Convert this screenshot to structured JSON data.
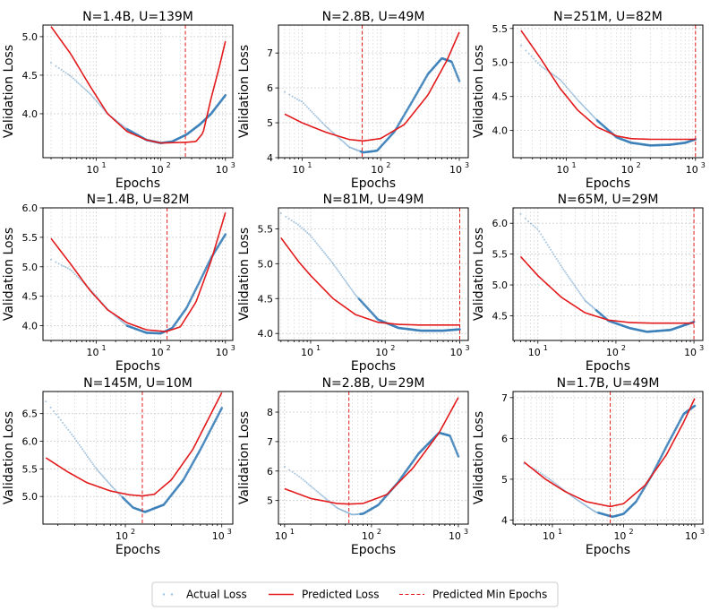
{
  "legend": {
    "actual": "Actual Loss",
    "predicted": "Predicted Loss",
    "min_epochs": "Predicted Min Epochs"
  },
  "colors": {
    "actual": "#3a7fb8",
    "predicted": "#e31a1c",
    "min_line": "#e31a1c",
    "grid": "#cfcfcf",
    "axis": "#000000"
  },
  "chart_data": [
    {
      "type": "scatter",
      "title": "N=1.4B, U=139M",
      "xlabel": "Epochs",
      "ylabel": "Validation Loss",
      "xscale": "log",
      "grid": true,
      "xlim": [
        1.5,
        1300
      ],
      "ylim": [
        3.43,
        5.15
      ],
      "xticks": [
        {
          "base": "10",
          "exp": "1",
          "v": 10
        },
        {
          "base": "10",
          "exp": "2",
          "v": 100
        },
        {
          "base": "10",
          "exp": "3",
          "v": 1000
        }
      ],
      "yticks": [
        "4.0",
        "4.5",
        "5.0"
      ],
      "actual": {
        "x_start": 2,
        "x_end": 1000,
        "points": [
          [
            2,
            4.66
          ],
          [
            4,
            4.49
          ],
          [
            8,
            4.26
          ],
          [
            15,
            4.0
          ],
          [
            30,
            3.8
          ],
          [
            60,
            3.66
          ],
          [
            100,
            3.62
          ],
          [
            150,
            3.64
          ],
          [
            250,
            3.73
          ],
          [
            400,
            3.86
          ],
          [
            600,
            4.0
          ],
          [
            1000,
            4.24
          ]
        ]
      },
      "predicted": {
        "points": [
          [
            2,
            5.13
          ],
          [
            4,
            4.78
          ],
          [
            8,
            4.36
          ],
          [
            15,
            4.0
          ],
          [
            30,
            3.77
          ],
          [
            60,
            3.66
          ],
          [
            100,
            3.62
          ],
          [
            250,
            3.63
          ],
          [
            350,
            3.64
          ],
          [
            450,
            3.75
          ],
          [
            600,
            4.2
          ],
          [
            800,
            4.6
          ],
          [
            1000,
            4.94
          ]
        ]
      },
      "min_epoch": 240
    },
    {
      "type": "scatter",
      "title": "N=2.8B, U=49M",
      "xlabel": "Epochs",
      "ylabel": "Validation Loss",
      "xscale": "log",
      "grid": true,
      "xlim": [
        5,
        1300
      ],
      "ylim": [
        4.0,
        7.8
      ],
      "xticks": [
        {
          "base": "10",
          "exp": "1",
          "v": 10
        },
        {
          "base": "10",
          "exp": "2",
          "v": 100
        },
        {
          "base": "10",
          "exp": "3",
          "v": 1000
        }
      ],
      "yticks": [
        "4",
        "5",
        "6",
        "7"
      ],
      "actual": {
        "x_start": 6,
        "x_end": 1000,
        "points": [
          [
            6,
            5.88
          ],
          [
            10,
            5.6
          ],
          [
            20,
            4.9
          ],
          [
            40,
            4.3
          ],
          [
            60,
            4.15
          ],
          [
            90,
            4.2
          ],
          [
            150,
            4.75
          ],
          [
            250,
            5.6
          ],
          [
            400,
            6.4
          ],
          [
            600,
            6.85
          ],
          [
            800,
            6.75
          ],
          [
            1000,
            6.2
          ]
        ]
      },
      "predicted": {
        "points": [
          [
            6,
            5.25
          ],
          [
            10,
            5.0
          ],
          [
            20,
            4.73
          ],
          [
            40,
            4.52
          ],
          [
            60,
            4.48
          ],
          [
            100,
            4.55
          ],
          [
            200,
            4.95
          ],
          [
            400,
            5.8
          ],
          [
            700,
            6.8
          ],
          [
            1000,
            7.6
          ]
        ]
      },
      "min_epoch": 58
    },
    {
      "type": "scatter",
      "title": "N=251M, U=82M",
      "xlabel": "Epochs",
      "ylabel": "Validation Loss",
      "xscale": "log",
      "grid": true,
      "xlim": [
        1.5,
        1300
      ],
      "ylim": [
        3.6,
        5.55
      ],
      "xticks": [
        {
          "base": "10",
          "exp": "1",
          "v": 10
        },
        {
          "base": "10",
          "exp": "2",
          "v": 100
        },
        {
          "base": "10",
          "exp": "3",
          "v": 1000
        }
      ],
      "yticks": [
        "4.0",
        "4.5",
        "5.0",
        "5.5"
      ],
      "actual": {
        "x_start": 2,
        "x_end": 1000,
        "points": [
          [
            2,
            5.25
          ],
          [
            4,
            4.95
          ],
          [
            8,
            4.75
          ],
          [
            15,
            4.45
          ],
          [
            30,
            4.15
          ],
          [
            60,
            3.9
          ],
          [
            100,
            3.82
          ],
          [
            200,
            3.78
          ],
          [
            400,
            3.79
          ],
          [
            700,
            3.82
          ],
          [
            1000,
            3.87
          ]
        ]
      },
      "predicted": {
        "points": [
          [
            2,
            5.47
          ],
          [
            4,
            5.06
          ],
          [
            8,
            4.62
          ],
          [
            15,
            4.3
          ],
          [
            30,
            4.05
          ],
          [
            60,
            3.92
          ],
          [
            100,
            3.88
          ],
          [
            200,
            3.87
          ],
          [
            1000,
            3.87
          ]
        ]
      },
      "min_epoch": 1000
    },
    {
      "type": "scatter",
      "title": "N=1.4B, U=82M",
      "xlabel": "Epochs",
      "ylabel": "Validation Loss",
      "xscale": "log",
      "grid": true,
      "xlim": [
        1.5,
        1300
      ],
      "ylim": [
        3.75,
        6.0
      ],
      "xticks": [
        {
          "base": "10",
          "exp": "1",
          "v": 10
        },
        {
          "base": "10",
          "exp": "2",
          "v": 100
        },
        {
          "base": "10",
          "exp": "3",
          "v": 1000
        }
      ],
      "yticks": [
        "4.0",
        "4.5",
        "5.0",
        "5.5",
        "6.0"
      ],
      "actual": {
        "x_start": 2,
        "x_end": 1000,
        "points": [
          [
            2,
            5.12
          ],
          [
            4,
            4.95
          ],
          [
            8,
            4.62
          ],
          [
            15,
            4.28
          ],
          [
            30,
            4.0
          ],
          [
            60,
            3.88
          ],
          [
            100,
            3.87
          ],
          [
            150,
            3.96
          ],
          [
            250,
            4.3
          ],
          [
            400,
            4.75
          ],
          [
            600,
            5.15
          ],
          [
            1000,
            5.55
          ]
        ]
      },
      "predicted": {
        "points": [
          [
            2,
            5.48
          ],
          [
            4,
            5.05
          ],
          [
            8,
            4.6
          ],
          [
            15,
            4.27
          ],
          [
            30,
            4.05
          ],
          [
            60,
            3.93
          ],
          [
            120,
            3.9
          ],
          [
            200,
            3.98
          ],
          [
            350,
            4.4
          ],
          [
            600,
            5.1
          ],
          [
            1000,
            5.92
          ]
        ]
      },
      "min_epoch": 125
    },
    {
      "type": "scatter",
      "title": "N=81M, U=49M",
      "xlabel": "Epochs",
      "ylabel": "Validation Loss",
      "xscale": "log",
      "grid": true,
      "xlim": [
        3.7,
        1300
      ],
      "ylim": [
        3.9,
        5.8
      ],
      "xticks": [
        {
          "base": "10",
          "exp": "1",
          "v": 10
        },
        {
          "base": "10",
          "exp": "2",
          "v": 100
        },
        {
          "base": "10",
          "exp": "3",
          "v": 1000
        }
      ],
      "yticks": [
        "4.0",
        "4.5",
        "5.0",
        "5.5"
      ],
      "actual": {
        "x_start": 4,
        "x_end": 1000,
        "points": [
          [
            4,
            5.72
          ],
          [
            7,
            5.55
          ],
          [
            10,
            5.4
          ],
          [
            20,
            5.0
          ],
          [
            40,
            4.55
          ],
          [
            80,
            4.2
          ],
          [
            150,
            4.08
          ],
          [
            300,
            4.04
          ],
          [
            600,
            4.04
          ],
          [
            1000,
            4.06
          ]
        ]
      },
      "predicted": {
        "points": [
          [
            4,
            5.37
          ],
          [
            7,
            5.02
          ],
          [
            10,
            4.83
          ],
          [
            20,
            4.5
          ],
          [
            40,
            4.27
          ],
          [
            80,
            4.16
          ],
          [
            150,
            4.13
          ],
          [
            300,
            4.12
          ],
          [
            1000,
            4.12
          ]
        ]
      },
      "min_epoch": 1000
    },
    {
      "type": "scatter",
      "title": "N=65M, U=29M",
      "xlabel": "Epochs",
      "ylabel": "Validation Loss",
      "xscale": "log",
      "grid": true,
      "xlim": [
        4.8,
        1300
      ],
      "ylim": [
        4.1,
        6.25
      ],
      "xticks": [
        {
          "base": "10",
          "exp": "1",
          "v": 10
        },
        {
          "base": "10",
          "exp": "2",
          "v": 100
        },
        {
          "base": "10",
          "exp": "3",
          "v": 1000
        }
      ],
      "yticks": [
        "4.5",
        "5.0",
        "5.5",
        "6.0"
      ],
      "actual": {
        "x_start": 6,
        "x_end": 1000,
        "points": [
          [
            6,
            6.15
          ],
          [
            8,
            6.0
          ],
          [
            10,
            5.9
          ],
          [
            20,
            5.3
          ],
          [
            40,
            4.75
          ],
          [
            80,
            4.42
          ],
          [
            150,
            4.3
          ],
          [
            250,
            4.24
          ],
          [
            500,
            4.27
          ],
          [
            1000,
            4.4
          ]
        ]
      },
      "predicted": {
        "points": [
          [
            6,
            5.46
          ],
          [
            10,
            5.15
          ],
          [
            20,
            4.8
          ],
          [
            40,
            4.55
          ],
          [
            80,
            4.43
          ],
          [
            150,
            4.39
          ],
          [
            300,
            4.38
          ],
          [
            1000,
            4.38
          ]
        ]
      },
      "min_epoch": 1000
    },
    {
      "type": "scatter",
      "title": "N=145M, U=10M",
      "xlabel": "Epochs",
      "ylabel": "Validation Loss",
      "xscale": "log",
      "grid": true,
      "xlim": [
        14,
        1300
      ],
      "ylim": [
        4.5,
        6.9
      ],
      "xticks": [
        {
          "base": "10",
          "exp": "2",
          "v": 100
        },
        {
          "base": "10",
          "exp": "3",
          "v": 1000
        }
      ],
      "yticks": [
        "5.0",
        "5.5",
        "6.0",
        "6.5"
      ],
      "actual": {
        "x_start": 15,
        "x_end": 1000,
        "points": [
          [
            15,
            6.72
          ],
          [
            20,
            6.45
          ],
          [
            30,
            6.05
          ],
          [
            50,
            5.5
          ],
          [
            80,
            5.1
          ],
          [
            120,
            4.8
          ],
          [
            160,
            4.72
          ],
          [
            250,
            4.85
          ],
          [
            400,
            5.3
          ],
          [
            600,
            5.85
          ],
          [
            1000,
            6.6
          ]
        ]
      },
      "predicted": {
        "points": [
          [
            15,
            5.7
          ],
          [
            25,
            5.45
          ],
          [
            40,
            5.25
          ],
          [
            70,
            5.1
          ],
          [
            110,
            5.03
          ],
          [
            150,
            5.01
          ],
          [
            200,
            5.04
          ],
          [
            300,
            5.3
          ],
          [
            500,
            5.85
          ],
          [
            1000,
            6.88
          ]
        ]
      },
      "min_epoch": 150
    },
    {
      "type": "scatter",
      "title": "N=2.8B, U=29M",
      "xlabel": "Epochs",
      "ylabel": "Validation Loss",
      "xscale": "log",
      "grid": true,
      "xlim": [
        8.5,
        1300
      ],
      "ylim": [
        4.2,
        8.7
      ],
      "xticks": [
        {
          "base": "10",
          "exp": "1",
          "v": 10
        },
        {
          "base": "10",
          "exp": "2",
          "v": 100
        },
        {
          "base": "10",
          "exp": "3",
          "v": 1000
        }
      ],
      "yticks": [
        "5",
        "6",
        "7",
        "8"
      ],
      "actual": {
        "x_start": 10,
        "x_end": 1000,
        "points": [
          [
            10,
            6.15
          ],
          [
            15,
            5.8
          ],
          [
            25,
            5.25
          ],
          [
            40,
            4.75
          ],
          [
            60,
            4.52
          ],
          [
            80,
            4.55
          ],
          [
            120,
            4.85
          ],
          [
            200,
            5.6
          ],
          [
            350,
            6.6
          ],
          [
            600,
            7.3
          ],
          [
            800,
            7.2
          ],
          [
            1000,
            6.5
          ]
        ]
      },
      "predicted": {
        "points": [
          [
            10,
            5.4
          ],
          [
            20,
            5.07
          ],
          [
            40,
            4.9
          ],
          [
            55,
            4.88
          ],
          [
            80,
            4.9
          ],
          [
            150,
            5.2
          ],
          [
            300,
            6.1
          ],
          [
            600,
            7.3
          ],
          [
            1000,
            8.5
          ]
        ]
      },
      "min_epoch": 55
    },
    {
      "type": "scatter",
      "title": "N=1.7B, U=49M",
      "xlabel": "Epochs",
      "ylabel": "Validation Loss",
      "xscale": "log",
      "grid": true,
      "xlim": [
        2.8,
        1300
      ],
      "ylim": [
        3.9,
        7.15
      ],
      "xticks": [
        {
          "base": "10",
          "exp": "1",
          "v": 10
        },
        {
          "base": "10",
          "exp": "2",
          "v": 100
        },
        {
          "base": "10",
          "exp": "3",
          "v": 1000
        }
      ],
      "yticks": [
        "4",
        "5",
        "6",
        "7"
      ],
      "actual": {
        "x_start": 4,
        "x_end": 1000,
        "points": [
          [
            4,
            5.38
          ],
          [
            6,
            5.22
          ],
          [
            10,
            4.95
          ],
          [
            20,
            4.55
          ],
          [
            40,
            4.2
          ],
          [
            70,
            4.08
          ],
          [
            100,
            4.15
          ],
          [
            150,
            4.45
          ],
          [
            250,
            5.1
          ],
          [
            400,
            5.8
          ],
          [
            700,
            6.6
          ],
          [
            1000,
            6.8
          ]
        ]
      },
      "predicted": {
        "points": [
          [
            4,
            5.42
          ],
          [
            8,
            5.0
          ],
          [
            15,
            4.7
          ],
          [
            30,
            4.45
          ],
          [
            65,
            4.33
          ],
          [
            100,
            4.4
          ],
          [
            200,
            4.85
          ],
          [
            400,
            5.6
          ],
          [
            700,
            6.4
          ],
          [
            1000,
            6.98
          ]
        ]
      },
      "min_epoch": 65
    }
  ]
}
